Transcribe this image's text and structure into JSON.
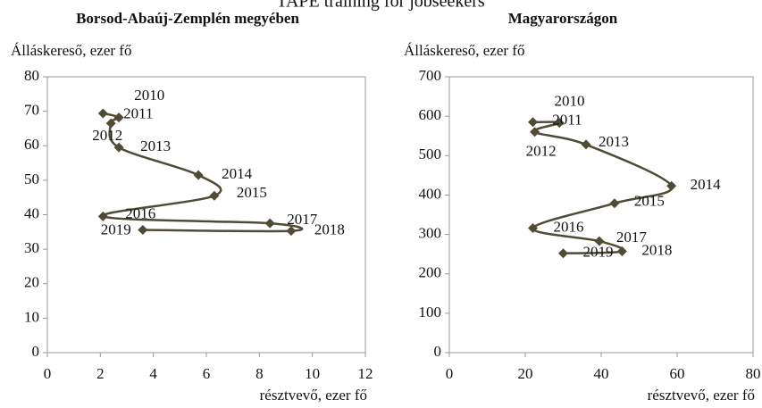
{
  "title": "TAPE training for jobseekers",
  "chart_data": [
    {
      "type": "line",
      "title": "Borsod-Abaúj-Zemplén megyében",
      "y_label": "Álláskereső, ezer fő",
      "x_label": "résztvevő, ezer fő",
      "x": [
        2.1,
        2.7,
        2.4,
        2.7,
        5.7,
        6.3,
        2.1,
        8.4,
        9.2,
        3.6
      ],
      "values": [
        69.4,
        68.2,
        66.5,
        59.5,
        51.5,
        45.5,
        39.5,
        37.5,
        35.3,
        35.6
      ],
      "point_labels": [
        "2010",
        "2011",
        "2012",
        "2013",
        "2014",
        "2015",
        "2016",
        "2017",
        "2018",
        "2019"
      ],
      "color": "#4f4b35",
      "xlim": [
        0,
        12
      ],
      "xticks": [
        0,
        2,
        4,
        6,
        8,
        10,
        12
      ],
      "ylim": [
        0,
        80
      ],
      "yticks": [
        0,
        10,
        20,
        30,
        40,
        50,
        60,
        70,
        80
      ]
    },
    {
      "type": "line",
      "title": "Magyarországon",
      "y_label": "Álláskereső, ezer fő",
      "x_label": "résztvevő, ezer fő",
      "x": [
        22,
        29,
        22.5,
        36,
        58.5,
        43.5,
        22,
        39.5,
        45.5,
        30
      ],
      "values": [
        585,
        583,
        560,
        528,
        423,
        379,
        316,
        283,
        257,
        252
      ],
      "point_labels": [
        "2010",
        "2011",
        "2012",
        "2013",
        "2014",
        "2015",
        "2016",
        "2017",
        "2018",
        "2019"
      ],
      "color": "#4f4b35",
      "xlim": [
        0,
        80
      ],
      "xticks": [
        0,
        20,
        40,
        60,
        80
      ],
      "ylim": [
        0,
        700
      ],
      "yticks": [
        0,
        100,
        200,
        300,
        400,
        500,
        600,
        700
      ]
    }
  ]
}
